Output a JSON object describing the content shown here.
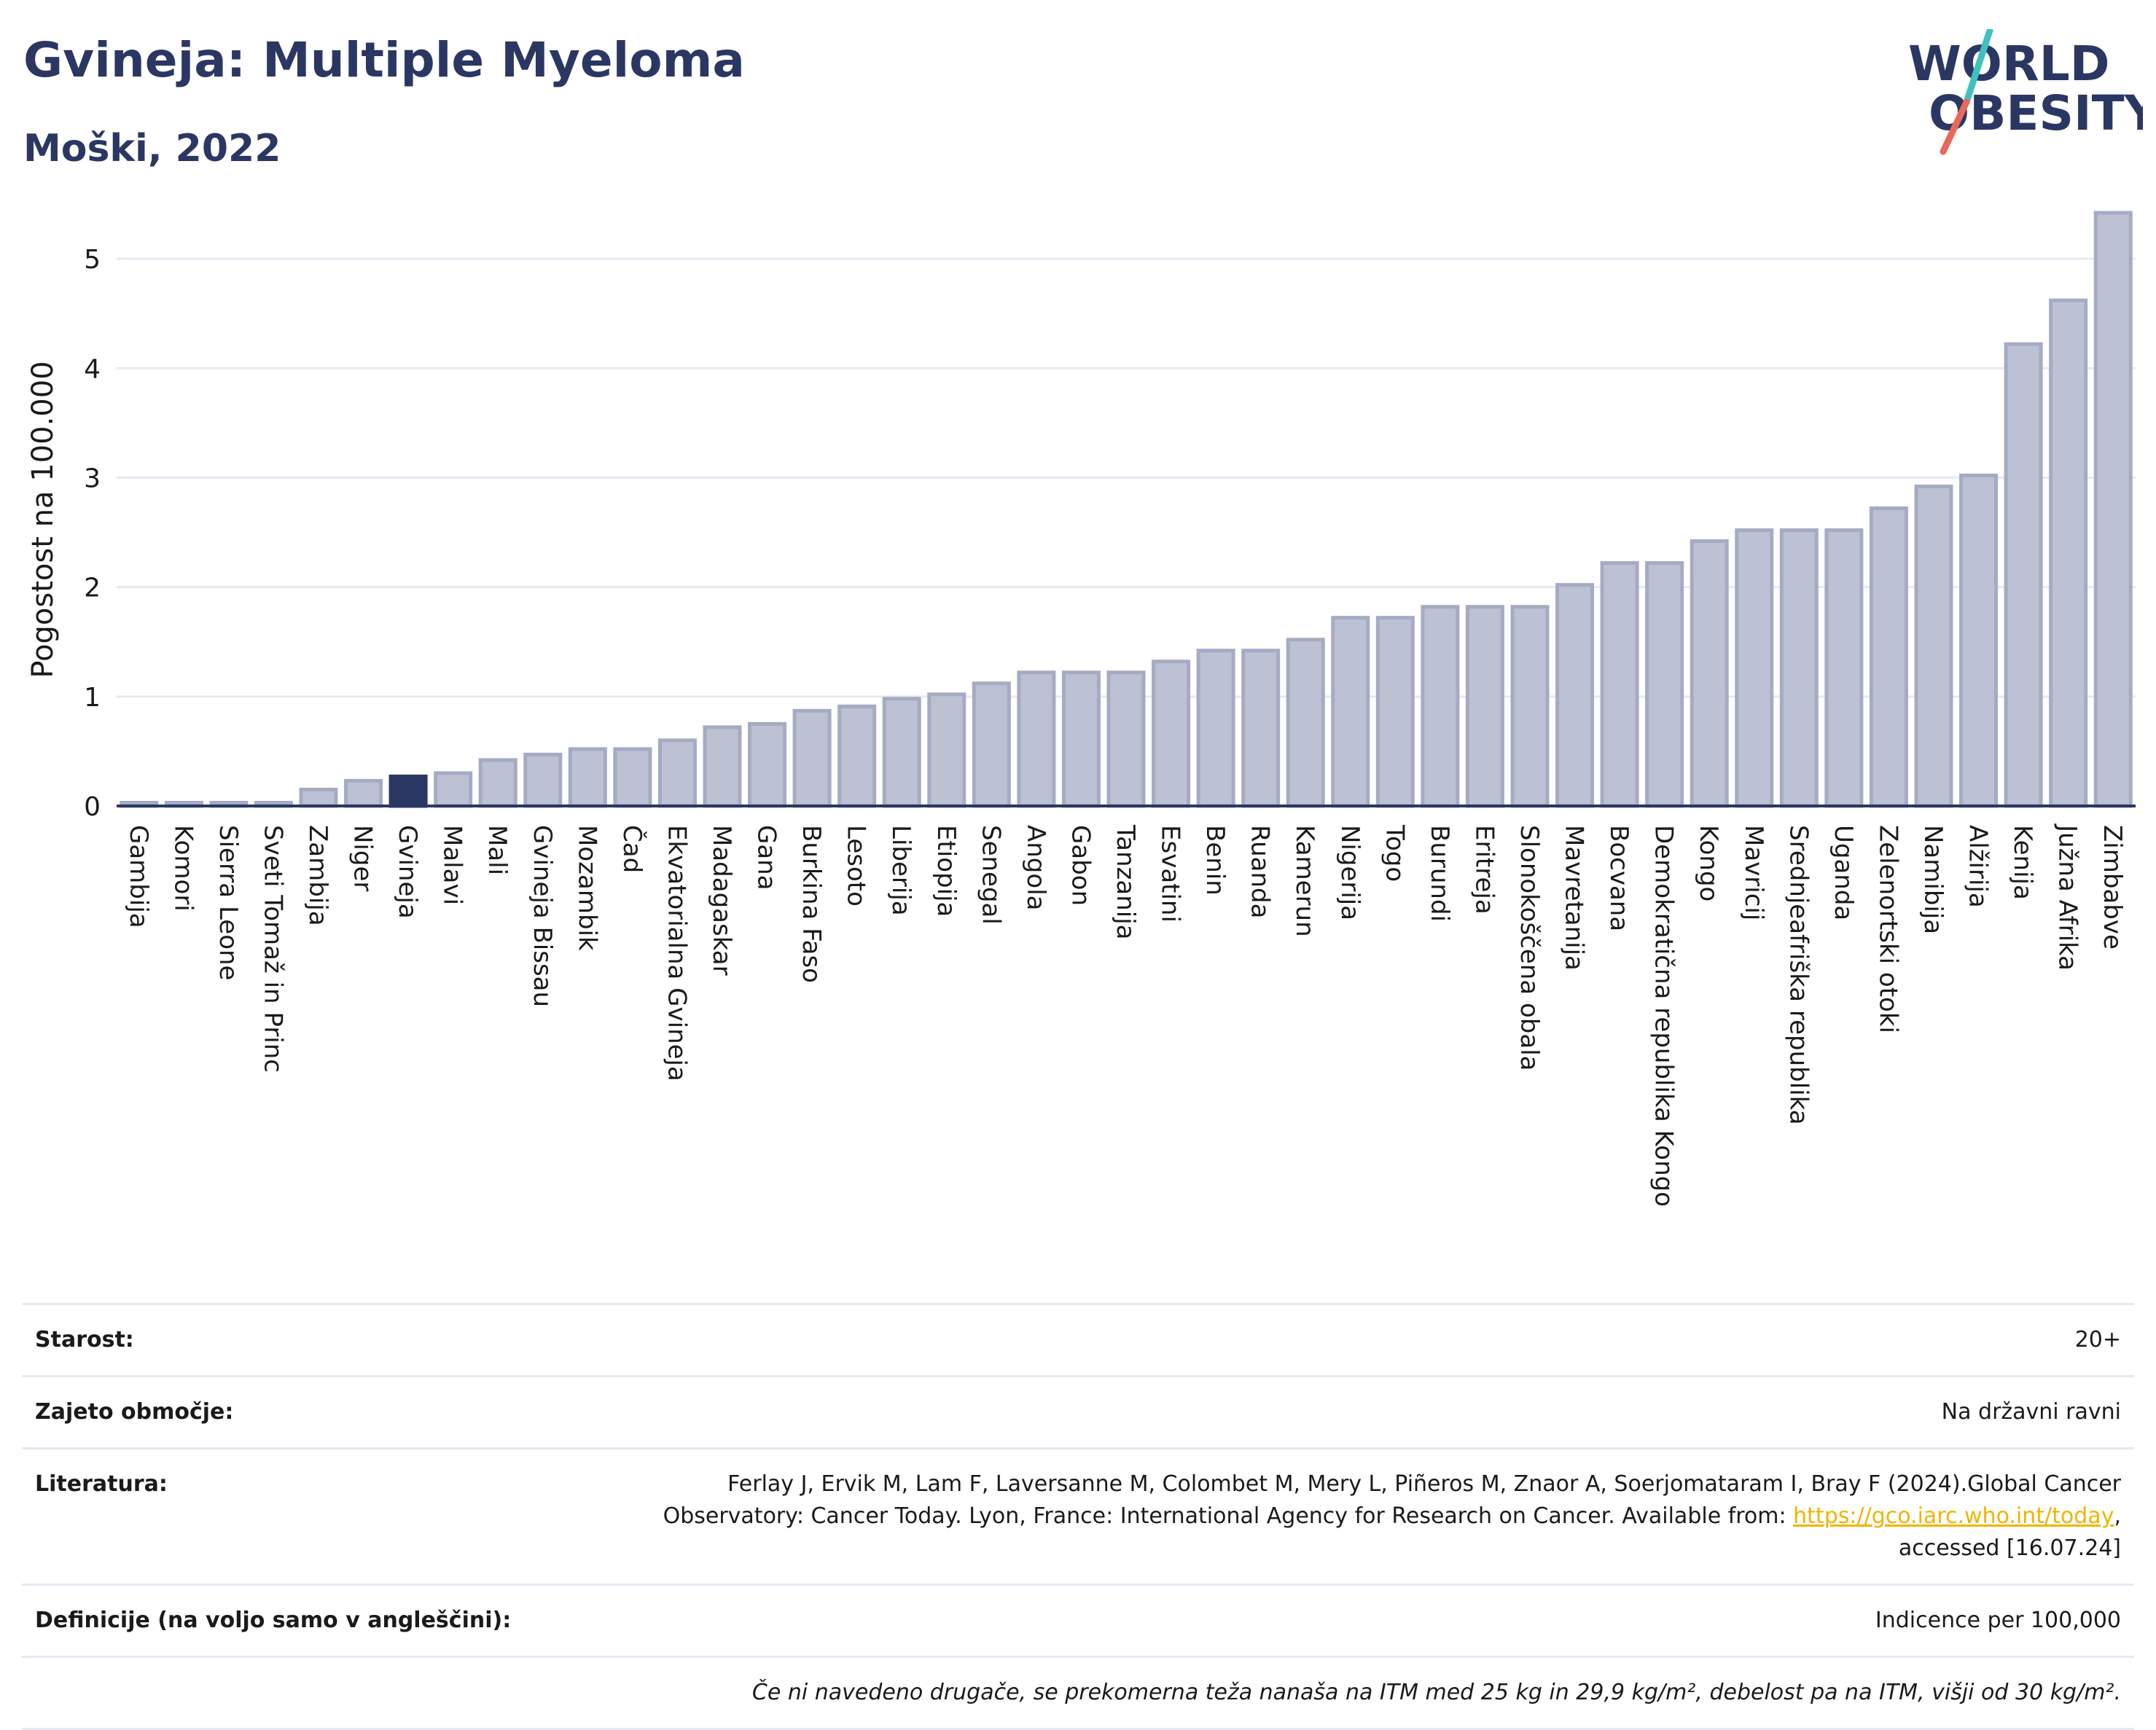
{
  "header": {
    "title": "Gvineja: Multiple Myeloma",
    "subtitle": "Moški, 2022"
  },
  "logo": {
    "line1": "WORLD",
    "line2": "OBESITY",
    "text_color": "#2b3763",
    "slash_top_color": "#40c0c0",
    "slash_bottom_color": "#e8685a"
  },
  "colors": {
    "bar_fill": "#bcc1d3",
    "bar_stroke": "#a4abc3",
    "highlight_fill": "#2b3763",
    "grid": "#e6e9f2",
    "axis": "#2b3763"
  },
  "chart_data": {
    "type": "bar",
    "title": "",
    "xlabel": "",
    "ylabel": "Pogostost na 100.000",
    "ylim": [
      0,
      5.5
    ],
    "yticks": [
      0,
      1,
      2,
      3,
      4,
      5
    ],
    "grid": true,
    "highlight": "Gvineja",
    "categories": [
      "Gambija",
      "Komori",
      "Sierra Leone",
      "Sveti Tomaž in Princ",
      "Zambija",
      "Niger",
      "Gvineja",
      "Malavi",
      "Mali",
      "Gvineja Bissau",
      "Mozambik",
      "Čad",
      "Ekvatorialna Gvineja",
      "Madagaskar",
      "Gana",
      "Burkina Faso",
      "Lesoto",
      "Liberija",
      "Etiopija",
      "Senegal",
      "Angola",
      "Gabon",
      "Tanzanija",
      "Esvatini",
      "Benin",
      "Ruanda",
      "Kamerun",
      "Nigerija",
      "Togo",
      "Burundi",
      "Eritreja",
      "Slonokoščena obala",
      "Mavretanija",
      "Bocvana",
      "Demokratična republika Kongo",
      "Kongo",
      "Mavricij",
      "Srednjeafriška republika",
      "Uganda",
      "Zelenortski otoki",
      "Namibija",
      "Alžirija",
      "Kenija",
      "Južna Afrika",
      "Zimbabve"
    ],
    "values": [
      0.03,
      0.03,
      0.03,
      0.03,
      0.15,
      0.23,
      0.27,
      0.3,
      0.42,
      0.47,
      0.52,
      0.52,
      0.6,
      0.72,
      0.75,
      0.87,
      0.91,
      0.98,
      1.02,
      1.12,
      1.22,
      1.22,
      1.22,
      1.32,
      1.42,
      1.42,
      1.52,
      1.72,
      1.72,
      1.82,
      1.82,
      1.82,
      2.02,
      2.22,
      2.22,
      2.42,
      2.52,
      2.52,
      2.52,
      2.72,
      2.92,
      3.02,
      4.22,
      4.62,
      5.42
    ]
  },
  "info": {
    "age_label": "Starost:",
    "age_value": "20+",
    "coverage_label": "Zajeto območje:",
    "coverage_value": "Na državni ravni",
    "literature_label": "Literatura:",
    "literature_line1": "Ferlay J, Ervik M, Lam F, Laversanne M, Colombet M, Mery L, Piñeros M, Znaor A, Soerjomataram I, Bray F (2024).Global Cancer",
    "literature_line2_pre": "Observatory: Cancer Today. Lyon, France: International Agency for Research on Cancer. Available from: ",
    "literature_link": "https://gco.iarc.who.int/today",
    "literature_line2_post": ",",
    "literature_line3": "accessed [16.07.24]",
    "definitions_label": "Definicije (na voljo samo v angleščini):",
    "definitions_value": "Indicence per 100,000",
    "note": "Če ni navedeno drugače, se prekomerna teža nanaša na ITM med 25 kg in 29,9 kg/m², debelost pa na ITM, višji od 30 kg/m²."
  }
}
